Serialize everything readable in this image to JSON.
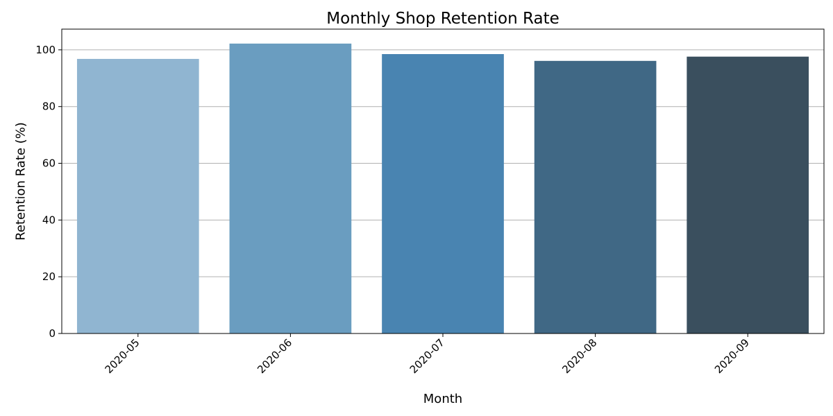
{
  "chart_data": {
    "type": "bar",
    "title": "Monthly Shop Retention Rate",
    "xlabel": "Month",
    "ylabel": "Retention Rate (%)",
    "categories": [
      "2020-05",
      "2020-06",
      "2020-07",
      "2020-08",
      "2020-09"
    ],
    "values": [
      96.8,
      102.2,
      98.5,
      96.1,
      97.6
    ],
    "ylim": [
      0,
      107.3
    ],
    "yticks": [
      0,
      20,
      40,
      60,
      80,
      100
    ],
    "grid": "y-axis only",
    "x_tick_rotation": "45 degrees",
    "colors": [
      "#90b5d1",
      "#6a9dc0",
      "#4984b1",
      "#406885",
      "#3a4f5e"
    ]
  }
}
